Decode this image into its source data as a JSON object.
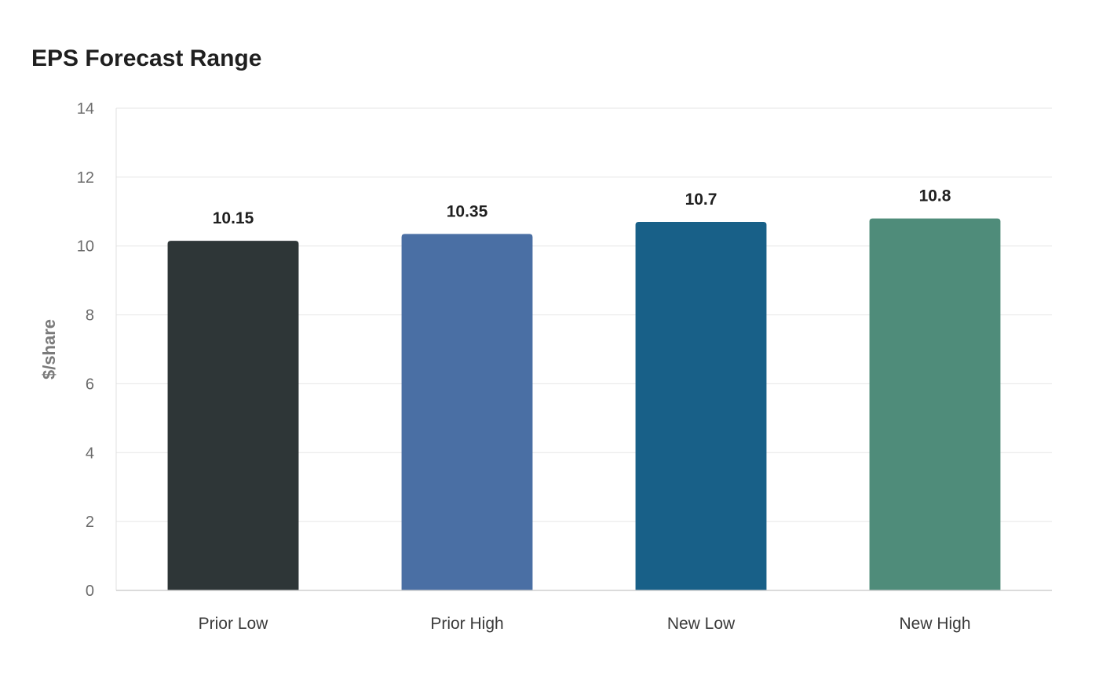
{
  "chart_data": {
    "type": "bar",
    "title": "EPS Forecast Range",
    "xlabel": "",
    "ylabel": "$/share",
    "categories": [
      "Prior Low",
      "Prior High",
      "New Low",
      "New High"
    ],
    "values": [
      10.15,
      10.35,
      10.7,
      10.8
    ],
    "value_labels": [
      "10.15",
      "10.35",
      "10.7",
      "10.8"
    ],
    "colors": [
      "#2e3637",
      "#4a6fa4",
      "#186088",
      "#4f8c7a"
    ],
    "ylim": [
      0,
      14
    ],
    "yticks": [
      0,
      2,
      4,
      6,
      8,
      10,
      12,
      14
    ],
    "grid": true,
    "legend": "none"
  }
}
